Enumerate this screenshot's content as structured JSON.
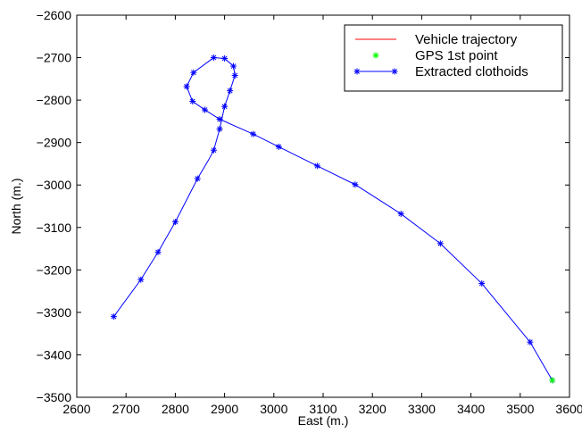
{
  "chart_data": {
    "type": "line",
    "title": "",
    "xlabel": "East (m.)",
    "ylabel": "North (m.)",
    "xlim": [
      2600,
      3600
    ],
    "ylim": [
      -3500,
      -2600
    ],
    "xticks": [
      2600,
      2700,
      2800,
      2900,
      3000,
      3100,
      3200,
      3300,
      3400,
      3500,
      3600
    ],
    "yticks": [
      -3500,
      -3400,
      -3300,
      -3200,
      -3100,
      -3000,
      -2900,
      -2800,
      -2700,
      -2600
    ],
    "grid": false,
    "legend": "top-right",
    "colors": {
      "trajectory": "#ff0000",
      "gps": "#00ff00",
      "clothoids": "#0000ff"
    },
    "series": [
      {
        "name": "Vehicle trajectory",
        "style": "line",
        "x": [],
        "y": []
      },
      {
        "name": "GPS 1st point",
        "style": "marker",
        "x": [
          3565
        ],
        "y": [
          -3460
        ]
      },
      {
        "name": "Extracted clothoids",
        "style": "line-marker",
        "x": [
          3565,
          3520,
          3422,
          3338,
          3258,
          3165,
          3088,
          3010,
          2958,
          2890,
          2860,
          2835,
          2823,
          2837,
          2878,
          2900,
          2918,
          2921,
          2911,
          2900,
          2890,
          2878,
          2868,
          2845,
          2800,
          2765,
          2730,
          2675
        ],
        "y": [
          -3460,
          -3370,
          -3232,
          -3138,
          -3068,
          -2999,
          -2955,
          -2910,
          -2880,
          -2845,
          -2823,
          -2803,
          -2768,
          -2735,
          -2700,
          -2702,
          -2720,
          -2742,
          -2778,
          -2815,
          -2868,
          -2918,
          -2940,
          -2985,
          -3087,
          -3158,
          -3223,
          -3310
        ],
        "markers": [
          [
            3565,
            -3460
          ],
          [
            3520,
            -3370
          ],
          [
            3422,
            -3232
          ],
          [
            3338,
            -3138
          ],
          [
            3258,
            -3068
          ],
          [
            3165,
            -2999
          ],
          [
            3088,
            -2955
          ],
          [
            3010,
            -2910
          ],
          [
            2958,
            -2880
          ],
          [
            2890,
            -2845
          ],
          [
            2860,
            -2823
          ],
          [
            2835,
            -2803
          ],
          [
            2823,
            -2768
          ],
          [
            2837,
            -2735
          ],
          [
            2878,
            -2700
          ],
          [
            2900,
            -2702
          ],
          [
            2918,
            -2720
          ],
          [
            2921,
            -2742
          ],
          [
            2911,
            -2778
          ],
          [
            2900,
            -2815
          ],
          [
            2890,
            -2868
          ],
          [
            2878,
            -2918
          ],
          [
            2845,
            -2985
          ],
          [
            2800,
            -3087
          ],
          [
            2765,
            -3158
          ],
          [
            2730,
            -3223
          ],
          [
            2675,
            -3310
          ]
        ]
      }
    ]
  }
}
